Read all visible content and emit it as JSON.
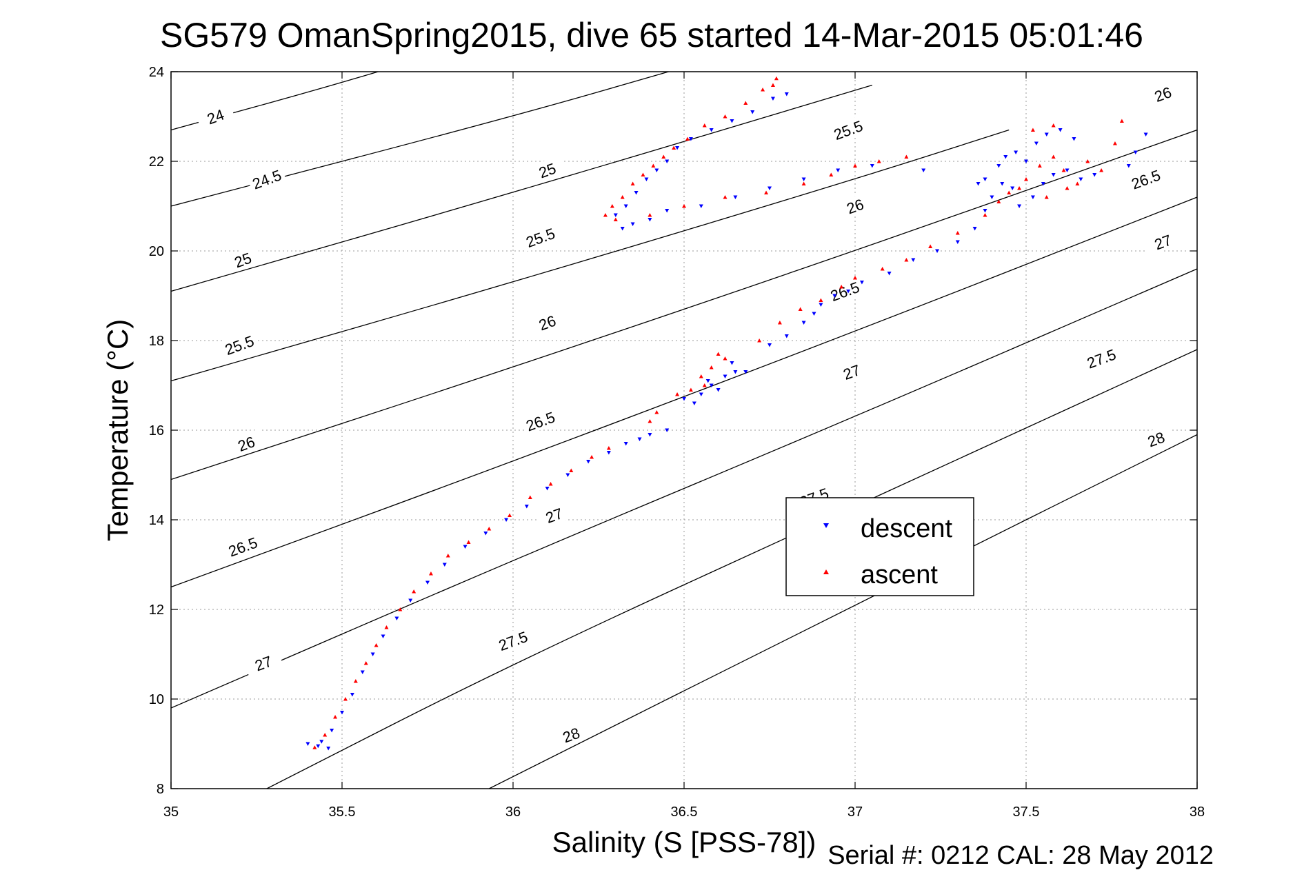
{
  "chart_data": {
    "type": "scatter",
    "title": "SG579 OmanSpring2015, dive 65 started 14-Mar-2015 05:01:46",
    "xlabel": "Salinity (S [PSS-78])",
    "ylabel": "Temperature (°C)",
    "xlim": [
      35,
      38
    ],
    "ylim": [
      8,
      24
    ],
    "xticks": [
      "35",
      "35.5",
      "36",
      "36.5",
      "37",
      "37.5",
      "38"
    ],
    "yticks": [
      "8",
      "10",
      "12",
      "14",
      "16",
      "18",
      "20",
      "22",
      "24"
    ],
    "grid": true,
    "legend_position": "center-right",
    "contours": [
      {
        "label": "24",
        "points": [
          [
            35,
            22.7
          ],
          [
            35.5,
            23.75
          ],
          [
            35.95,
            24.8
          ]
        ],
        "labels_at": [
          [
            35.13,
            23.0
          ]
        ]
      },
      {
        "label": "24.5",
        "points": [
          [
            35,
            21.0
          ],
          [
            36.0,
            23.0
          ],
          [
            36.5,
            24.1
          ]
        ],
        "labels_at": [
          [
            35.28,
            21.6
          ]
        ]
      },
      {
        "label": "25",
        "points": [
          [
            35,
            19.1
          ],
          [
            36.0,
            21.3
          ],
          [
            37.05,
            23.7
          ]
        ],
        "labels_at": [
          [
            35.21,
            19.8
          ],
          [
            36.1,
            21.8
          ]
        ]
      },
      {
        "label": "25.5",
        "points": [
          [
            35,
            17.1
          ],
          [
            36.0,
            19.3
          ],
          [
            37.0,
            21.6
          ],
          [
            37.45,
            22.7
          ]
        ],
        "labels_at": [
          [
            35.2,
            17.9
          ],
          [
            36.08,
            20.3
          ],
          [
            36.98,
            22.7
          ]
        ]
      },
      {
        "label": "26",
        "points": [
          [
            35,
            14.9
          ],
          [
            36.0,
            17.4
          ],
          [
            37.0,
            20.0
          ],
          [
            38.0,
            22.7
          ]
        ],
        "labels_at": [
          [
            35.22,
            15.7
          ],
          [
            36.1,
            18.4
          ],
          [
            37.0,
            21.0
          ],
          [
            37.9,
            23.5
          ]
        ]
      },
      {
        "label": "26.5",
        "points": [
          [
            35,
            12.5
          ],
          [
            36.0,
            15.3
          ],
          [
            37.0,
            18.2
          ],
          [
            38.0,
            21.2
          ]
        ],
        "labels_at": [
          [
            35.21,
            13.4
          ],
          [
            36.08,
            16.2
          ],
          [
            36.97,
            19.1
          ],
          [
            37.85,
            21.6
          ]
        ]
      },
      {
        "label": "27",
        "points": [
          [
            35,
            9.8
          ],
          [
            36.0,
            13.1
          ],
          [
            37.0,
            16.3
          ],
          [
            38.0,
            19.6
          ]
        ],
        "labels_at": [
          [
            35.27,
            10.8
          ],
          [
            36.12,
            14.1
          ],
          [
            36.99,
            17.3
          ],
          [
            37.9,
            20.2
          ]
        ]
      },
      {
        "label": "27.5",
        "points": [
          [
            35.28,
            8.0
          ],
          [
            36.0,
            10.8
          ],
          [
            37.0,
            14.3
          ],
          [
            38.0,
            17.8
          ]
        ],
        "labels_at": [
          [
            36.0,
            11.3
          ],
          [
            36.88,
            14.5
          ],
          [
            37.72,
            17.6
          ]
        ]
      },
      {
        "label": "28",
        "points": [
          [
            35.93,
            8.0
          ],
          [
            37.0,
            12.1
          ],
          [
            38.0,
            15.9
          ]
        ],
        "labels_at": [
          [
            36.17,
            9.2
          ],
          [
            37.88,
            15.8
          ]
        ]
      }
    ],
    "series": [
      {
        "name": "descent",
        "color": "#0000ff",
        "marker": "triangle-down",
        "points": [
          [
            35.4,
            9.0
          ],
          [
            35.43,
            8.95
          ],
          [
            35.46,
            8.9
          ],
          [
            35.44,
            9.05
          ],
          [
            35.47,
            9.3
          ],
          [
            35.5,
            9.7
          ],
          [
            35.53,
            10.1
          ],
          [
            35.56,
            10.6
          ],
          [
            35.59,
            11.0
          ],
          [
            35.62,
            11.4
          ],
          [
            35.66,
            11.8
          ],
          [
            35.7,
            12.2
          ],
          [
            35.75,
            12.6
          ],
          [
            35.8,
            13.0
          ],
          [
            35.86,
            13.4
          ],
          [
            35.92,
            13.7
          ],
          [
            35.98,
            14.0
          ],
          [
            36.04,
            14.3
          ],
          [
            36.1,
            14.7
          ],
          [
            36.16,
            15.0
          ],
          [
            36.22,
            15.3
          ],
          [
            36.28,
            15.5
          ],
          [
            36.33,
            15.7
          ],
          [
            36.37,
            15.8
          ],
          [
            36.4,
            15.9
          ],
          [
            36.45,
            16.0
          ],
          [
            36.5,
            16.7
          ],
          [
            36.53,
            16.6
          ],
          [
            36.55,
            16.8
          ],
          [
            36.58,
            17.0
          ],
          [
            36.6,
            16.9
          ],
          [
            36.62,
            17.2
          ],
          [
            36.65,
            17.3
          ],
          [
            36.68,
            17.3
          ],
          [
            36.64,
            17.5
          ],
          [
            36.57,
            17.1
          ],
          [
            36.75,
            17.9
          ],
          [
            36.8,
            18.1
          ],
          [
            36.85,
            18.4
          ],
          [
            36.88,
            18.6
          ],
          [
            36.9,
            18.8
          ],
          [
            36.94,
            19.0
          ],
          [
            36.98,
            19.1
          ],
          [
            37.02,
            19.3
          ],
          [
            37.1,
            19.5
          ],
          [
            37.17,
            19.8
          ],
          [
            37.24,
            20.0
          ],
          [
            37.3,
            20.2
          ],
          [
            37.35,
            20.5
          ],
          [
            37.38,
            20.9
          ],
          [
            37.4,
            21.2
          ],
          [
            37.43,
            21.5
          ],
          [
            37.46,
            21.4
          ],
          [
            37.48,
            21.0
          ],
          [
            37.52,
            21.2
          ],
          [
            37.55,
            21.5
          ],
          [
            37.58,
            21.7
          ],
          [
            37.62,
            21.8
          ],
          [
            37.66,
            21.6
          ],
          [
            37.7,
            21.7
          ],
          [
            37.5,
            22.0
          ],
          [
            37.53,
            22.4
          ],
          [
            37.56,
            22.6
          ],
          [
            37.6,
            22.7
          ],
          [
            37.64,
            22.5
          ],
          [
            37.47,
            22.2
          ],
          [
            37.42,
            21.9
          ],
          [
            37.38,
            21.6
          ],
          [
            37.8,
            21.9
          ],
          [
            37.85,
            22.6
          ],
          [
            37.82,
            22.2
          ],
          [
            37.36,
            21.5
          ],
          [
            37.44,
            22.1
          ],
          [
            37.2,
            21.8
          ],
          [
            37.05,
            21.9
          ],
          [
            36.95,
            21.8
          ],
          [
            36.85,
            21.6
          ],
          [
            36.75,
            21.4
          ],
          [
            36.65,
            21.2
          ],
          [
            36.55,
            21.0
          ],
          [
            36.45,
            20.9
          ],
          [
            36.4,
            20.7
          ],
          [
            36.35,
            20.6
          ],
          [
            36.32,
            20.5
          ],
          [
            36.3,
            20.8
          ],
          [
            36.33,
            21.0
          ],
          [
            36.36,
            21.3
          ],
          [
            36.39,
            21.6
          ],
          [
            36.42,
            21.8
          ],
          [
            36.45,
            22.0
          ],
          [
            36.48,
            22.3
          ],
          [
            36.52,
            22.5
          ],
          [
            36.58,
            22.7
          ],
          [
            36.64,
            22.9
          ],
          [
            36.7,
            23.1
          ],
          [
            36.76,
            23.4
          ],
          [
            36.8,
            23.5
          ]
        ]
      },
      {
        "name": "ascent",
        "color": "#ff0000",
        "marker": "triangle-up",
        "points": [
          [
            35.42,
            8.92
          ],
          [
            35.45,
            9.2
          ],
          [
            35.48,
            9.6
          ],
          [
            35.51,
            10.0
          ],
          [
            35.54,
            10.4
          ],
          [
            35.57,
            10.8
          ],
          [
            35.6,
            11.2
          ],
          [
            35.63,
            11.6
          ],
          [
            35.67,
            12.0
          ],
          [
            35.71,
            12.4
          ],
          [
            35.76,
            12.8
          ],
          [
            35.81,
            13.2
          ],
          [
            35.87,
            13.5
          ],
          [
            35.93,
            13.8
          ],
          [
            35.99,
            14.1
          ],
          [
            36.05,
            14.5
          ],
          [
            36.11,
            14.8
          ],
          [
            36.17,
            15.1
          ],
          [
            36.23,
            15.4
          ],
          [
            36.28,
            15.6
          ],
          [
            36.4,
            16.2
          ],
          [
            36.42,
            16.4
          ],
          [
            36.48,
            16.8
          ],
          [
            36.52,
            16.9
          ],
          [
            36.55,
            17.2
          ],
          [
            36.58,
            17.4
          ],
          [
            36.6,
            17.7
          ],
          [
            36.62,
            17.6
          ],
          [
            36.56,
            17.0
          ],
          [
            36.72,
            18.0
          ],
          [
            36.78,
            18.4
          ],
          [
            36.84,
            18.7
          ],
          [
            36.9,
            18.9
          ],
          [
            36.96,
            19.2
          ],
          [
            37.0,
            19.4
          ],
          [
            37.08,
            19.6
          ],
          [
            37.15,
            19.8
          ],
          [
            37.22,
            20.1
          ],
          [
            37.3,
            20.4
          ],
          [
            37.45,
            21.3
          ],
          [
            37.5,
            21.6
          ],
          [
            37.54,
            21.9
          ],
          [
            37.58,
            22.1
          ],
          [
            37.61,
            21.8
          ],
          [
            37.65,
            21.5
          ],
          [
            37.68,
            22.0
          ],
          [
            37.72,
            21.8
          ],
          [
            37.76,
            22.4
          ],
          [
            37.78,
            22.9
          ],
          [
            37.58,
            22.8
          ],
          [
            37.52,
            22.7
          ],
          [
            37.48,
            21.4
          ],
          [
            37.42,
            21.1
          ],
          [
            37.56,
            21.2
          ],
          [
            37.62,
            21.4
          ],
          [
            37.38,
            20.8
          ],
          [
            37.15,
            22.1
          ],
          [
            37.07,
            22.0
          ],
          [
            37.0,
            21.9
          ],
          [
            36.93,
            21.7
          ],
          [
            36.85,
            21.5
          ],
          [
            36.74,
            21.3
          ],
          [
            36.62,
            21.2
          ],
          [
            36.5,
            21.0
          ],
          [
            36.4,
            20.8
          ],
          [
            36.3,
            20.7
          ],
          [
            36.27,
            20.8
          ],
          [
            36.29,
            21.0
          ],
          [
            36.32,
            21.2
          ],
          [
            36.35,
            21.5
          ],
          [
            36.38,
            21.7
          ],
          [
            36.41,
            21.9
          ],
          [
            36.44,
            22.1
          ],
          [
            36.47,
            22.3
          ],
          [
            36.51,
            22.5
          ],
          [
            36.56,
            22.8
          ],
          [
            36.62,
            23.0
          ],
          [
            36.68,
            23.3
          ],
          [
            36.73,
            23.6
          ],
          [
            36.76,
            23.7
          ],
          [
            36.77,
            23.85
          ]
        ]
      }
    ]
  },
  "legend": {
    "descent_label": "descent",
    "ascent_label": "ascent"
  },
  "footer": {
    "serial_text": "Serial #: 0212  CAL: 28 May 2012"
  }
}
